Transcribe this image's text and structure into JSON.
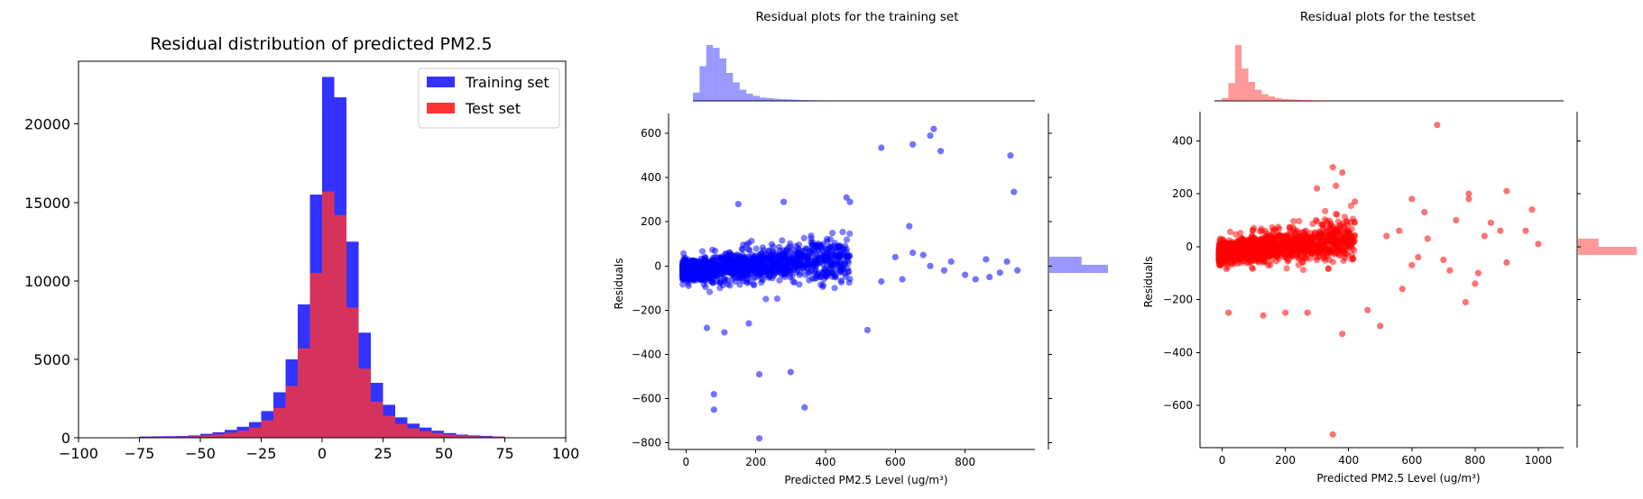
{
  "chart_data": [
    {
      "type": "histogram",
      "title": "Residual distribution of predicted PM2.5",
      "xlim": [
        -100,
        100
      ],
      "ylim": [
        0,
        24000
      ],
      "xticks": [
        "−100",
        "−75",
        "−50",
        "−25",
        "0",
        "25",
        "50",
        "75",
        "100"
      ],
      "yticks": [
        "0",
        "5000",
        "10000",
        "15000",
        "20000"
      ],
      "bin_edges": [
        -75,
        -70,
        -65,
        -60,
        -55,
        -50,
        -45,
        -40,
        -35,
        -30,
        -25,
        -20,
        -15,
        -10,
        -5,
        0,
        5,
        10,
        15,
        20,
        25,
        30,
        35,
        40,
        45,
        50,
        55,
        60,
        65,
        70,
        75
      ],
      "legend_position": "top-right",
      "series": [
        {
          "name": "Training set",
          "color": "#3333ff",
          "values": [
            80,
            90,
            100,
            110,
            150,
            250,
            350,
            500,
            700,
            1000,
            1700,
            2900,
            5000,
            8500,
            15500,
            23000,
            21700,
            12500,
            6700,
            3500,
            2100,
            1300,
            900,
            650,
            450,
            300,
            200,
            150,
            120,
            80
          ]
        },
        {
          "name": "Test set",
          "color": "#ff3333",
          "values": [
            40,
            50,
            60,
            70,
            100,
            150,
            220,
            320,
            450,
            650,
            1100,
            1900,
            3300,
            5700,
            10500,
            15700,
            14200,
            8300,
            4400,
            2300,
            1400,
            880,
            600,
            420,
            300,
            200,
            140,
            100,
            80,
            60
          ]
        }
      ]
    },
    {
      "type": "scatter",
      "title": "Residual plots for the training set",
      "xlabel": "Predicted PM2.5 Level (ug/m³)",
      "ylabel": "Residuals",
      "xlim": [
        -50,
        1000
      ],
      "ylim": [
        -830,
        690
      ],
      "xticks": [
        0,
        200,
        400,
        600,
        800
      ],
      "yticks": [
        -800,
        -600,
        -400,
        -200,
        0,
        200,
        400,
        600
      ],
      "color": "#0000ff",
      "cloud": {
        "x_range": [
          -10,
          470
        ],
        "mean": 0,
        "spread": 70
      },
      "outliers": [
        [
          650,
          550
        ],
        [
          710,
          620
        ],
        [
          730,
          520
        ],
        [
          930,
          500
        ],
        [
          940,
          335
        ],
        [
          560,
          535
        ],
        [
          460,
          310
        ],
        [
          700,
          590
        ],
        [
          150,
          280
        ],
        [
          280,
          290
        ],
        [
          470,
          290
        ],
        [
          80,
          -580
        ],
        [
          80,
          -650
        ],
        [
          210,
          -490
        ],
        [
          300,
          -480
        ],
        [
          340,
          -640
        ],
        [
          210,
          -780
        ],
        [
          520,
          -290
        ],
        [
          640,
          180
        ],
        [
          860,
          30
        ],
        [
          900,
          -30
        ],
        [
          920,
          20
        ],
        [
          950,
          -20
        ],
        [
          740,
          -20
        ],
        [
          800,
          -40
        ],
        [
          760,
          20
        ],
        [
          700,
          0
        ],
        [
          650,
          60
        ],
        [
          830,
          -60
        ],
        [
          600,
          40
        ],
        [
          870,
          -50
        ],
        [
          620,
          -60
        ],
        [
          560,
          -70
        ],
        [
          680,
          50
        ],
        [
          110,
          -300
        ],
        [
          60,
          -280
        ],
        [
          180,
          -260
        ]
      ],
      "marginal_x": [
        0.15,
        0.62,
        1.0,
        0.95,
        0.76,
        0.5,
        0.33,
        0.2,
        0.13,
        0.09,
        0.06,
        0.05,
        0.04,
        0.03,
        0.025,
        0.02,
        0.015,
        0.012,
        0.01,
        0.008
      ],
      "marginal_y": [
        0.55,
        1.0
      ]
    },
    {
      "type": "scatter",
      "title": "Residual plots for the testset",
      "xlabel": "Predicted PM2.5 Level (ug/m³)",
      "ylabel": "Residuals",
      "xlim": [
        -70,
        1080
      ],
      "ylim": [
        -760,
        510
      ],
      "xticks": [
        0,
        200,
        400,
        600,
        800,
        1000
      ],
      "yticks": [
        -600,
        -400,
        -200,
        0,
        200,
        400
      ],
      "color": "#ff0000",
      "cloud": {
        "x_range": [
          -10,
          420
        ],
        "mean": 0,
        "spread": 60
      },
      "outliers": [
        [
          680,
          460
        ],
        [
          350,
          300
        ],
        [
          380,
          280
        ],
        [
          300,
          220
        ],
        [
          360,
          230
        ],
        [
          420,
          170
        ],
        [
          600,
          180
        ],
        [
          640,
          130
        ],
        [
          780,
          200
        ],
        [
          780,
          180
        ],
        [
          900,
          210
        ],
        [
          980,
          140
        ],
        [
          1000,
          10
        ],
        [
          850,
          90
        ],
        [
          880,
          60
        ],
        [
          830,
          40
        ],
        [
          740,
          100
        ],
        [
          810,
          -100
        ],
        [
          800,
          -140
        ],
        [
          770,
          -210
        ],
        [
          600,
          -70
        ],
        [
          570,
          -160
        ],
        [
          500,
          -300
        ],
        [
          380,
          -330
        ],
        [
          350,
          -710
        ],
        [
          270,
          -250
        ],
        [
          200,
          -250
        ],
        [
          130,
          -260
        ],
        [
          20,
          -250
        ],
        [
          720,
          -90
        ],
        [
          650,
          30
        ],
        [
          560,
          60
        ],
        [
          460,
          -240
        ],
        [
          620,
          -40
        ],
        [
          520,
          40
        ],
        [
          900,
          -60
        ],
        [
          960,
          60
        ],
        [
          700,
          -50
        ]
      ],
      "marginal_x": [
        0.05,
        0.32,
        1.0,
        0.58,
        0.34,
        0.2,
        0.12,
        0.08,
        0.05,
        0.035,
        0.025,
        0.02,
        0.015,
        0.012,
        0.01,
        0.008
      ],
      "marginal_y": [
        0.35,
        1.0
      ]
    }
  ]
}
